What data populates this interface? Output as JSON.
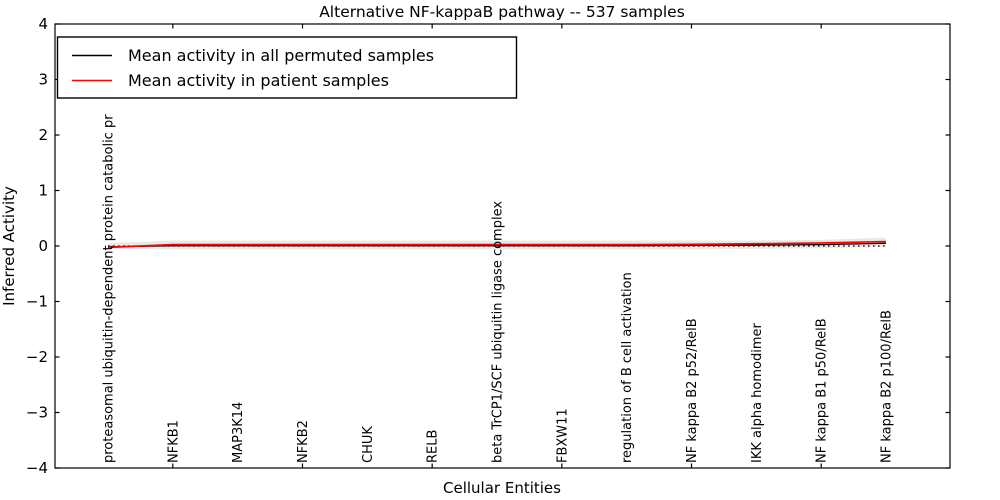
{
  "chart_data": {
    "type": "line",
    "title": "Alternative NF-kappaB pathway -- 537 samples",
    "xlabel": "Cellular Entities",
    "ylabel": "Inferred Activity",
    "ylim": [
      -4,
      4
    ],
    "yticks": [
      4,
      3,
      2,
      1,
      0,
      -1,
      -2,
      -3,
      -4
    ],
    "grid": false,
    "legend_position": "upper left",
    "categories": [
      "proteasomal ubiquitin-dependent protein catabolic pr",
      "NFKB1",
      "MAP3K14",
      "NFKB2",
      "CHUK",
      "RELB",
      "beta TrCP1/SCF ubiquitin ligase complex",
      "FBXW11",
      "regulation of B cell activation",
      "NF kappa B2 p52/RelB",
      "IKK alpha homodimer",
      "NF kappa B1 p50/RelB",
      "NF kappa B2 p100/RelB"
    ],
    "series": [
      {
        "name": "Mean activity in all permuted samples",
        "color": "#000000",
        "values": [
          -0.015,
          0.005,
          0.005,
          0.005,
          0.005,
          0.005,
          0.005,
          0.005,
          0.005,
          0.01,
          0.015,
          0.025,
          0.05
        ]
      },
      {
        "name": "Mean activity in patient samples",
        "color": "#ff0000",
        "values": [
          -0.025,
          0.025,
          0.025,
          0.025,
          0.025,
          0.025,
          0.025,
          0.025,
          0.025,
          0.03,
          0.04,
          0.055,
          0.08
        ]
      }
    ],
    "band": {
      "color": "#e8e8e8",
      "upper": [
        0.05,
        0.1,
        0.1,
        0.1,
        0.1,
        0.1,
        0.1,
        0.1,
        0.1,
        0.1,
        0.1,
        0.11,
        0.15
      ],
      "lower": [
        -0.05,
        -0.06,
        -0.06,
        -0.06,
        -0.06,
        -0.06,
        -0.06,
        -0.06,
        -0.06,
        -0.06,
        -0.05,
        -0.04,
        -0.01
      ]
    },
    "zero_line": {
      "style": "dotted",
      "color": "#000000",
      "y": 0
    },
    "top_tick_indices": [
      1,
      3,
      5,
      7,
      9,
      11
    ]
  }
}
